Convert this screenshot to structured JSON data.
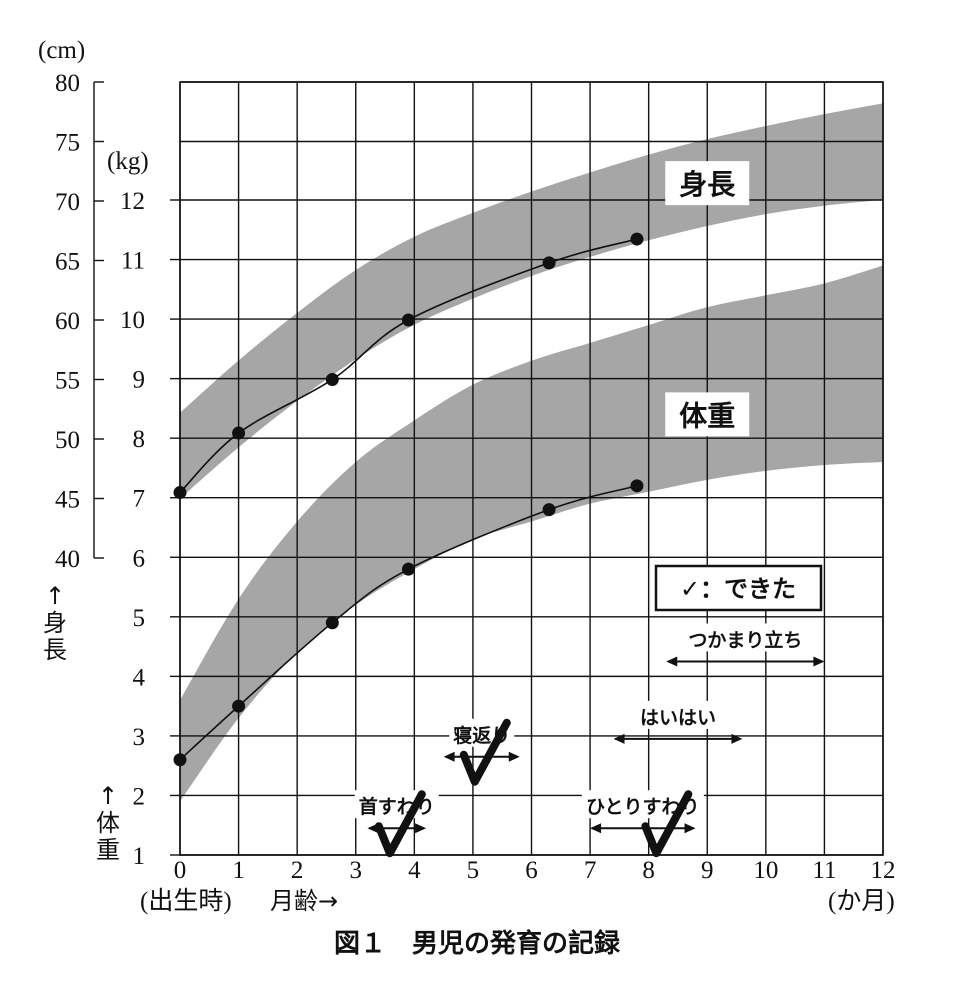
{
  "chart_data": {
    "type": "line",
    "title": "図１　男児の発育の記録",
    "xlabel": "月齢→",
    "x_unit": "(か月)",
    "x_birth_label": "(出生時)",
    "xlim": [
      0,
      12
    ],
    "xticks": [
      0,
      1,
      2,
      3,
      4,
      5,
      6,
      7,
      8,
      9,
      10,
      11,
      12
    ],
    "grid": true,
    "y_height": {
      "axis_label": [
        "↑",
        "身",
        "長"
      ],
      "unit": "(cm)",
      "ylim": [
        40,
        80
      ],
      "ticks": [
        40,
        45,
        50,
        55,
        60,
        65,
        70,
        75,
        80
      ]
    },
    "y_weight": {
      "axis_label": [
        "↑",
        "体",
        "重"
      ],
      "unit": "(kg)",
      "ylim": [
        1,
        12
      ],
      "ticks": [
        1,
        2,
        3,
        4,
        5,
        6,
        7,
        8,
        9,
        10,
        11,
        12
      ]
    },
    "bands": [
      {
        "name": "身長",
        "axis": "height",
        "color": "#a6a6a6",
        "upper": [
          [
            0,
            52.2
          ],
          [
            1,
            56.6
          ],
          [
            2,
            60.6
          ],
          [
            3,
            64.2
          ],
          [
            4,
            67.0
          ],
          [
            5,
            69.0
          ],
          [
            6,
            70.8
          ],
          [
            7,
            72.4
          ],
          [
            8,
            73.9
          ],
          [
            9,
            75.2
          ],
          [
            10,
            76.3
          ],
          [
            11,
            77.3
          ],
          [
            12,
            78.2
          ]
        ],
        "lower": [
          [
            0,
            45.0
          ],
          [
            1,
            49.3
          ],
          [
            2,
            53.2
          ],
          [
            3,
            56.7
          ],
          [
            4,
            59.6
          ],
          [
            5,
            61.8
          ],
          [
            6,
            63.7
          ],
          [
            7,
            65.3
          ],
          [
            8,
            66.7
          ],
          [
            9,
            67.9
          ],
          [
            10,
            68.9
          ],
          [
            11,
            69.6
          ],
          [
            12,
            70.1
          ]
        ]
      },
      {
        "name": "体重",
        "axis": "weight",
        "color": "#a6a6a6",
        "upper": [
          [
            0,
            3.6
          ],
          [
            1,
            5.3
          ],
          [
            2,
            6.6
          ],
          [
            3,
            7.6
          ],
          [
            4,
            8.3
          ],
          [
            5,
            8.9
          ],
          [
            6,
            9.3
          ],
          [
            7,
            9.6
          ],
          [
            8,
            9.9
          ],
          [
            9,
            10.2
          ],
          [
            10,
            10.4
          ],
          [
            11,
            10.6
          ],
          [
            12,
            10.9
          ]
        ],
        "lower": [
          [
            0,
            1.9
          ],
          [
            1,
            3.3
          ],
          [
            2,
            4.4
          ],
          [
            3,
            5.2
          ],
          [
            4,
            5.8
          ],
          [
            5,
            6.3
          ],
          [
            6,
            6.6
          ],
          [
            7,
            6.9
          ],
          [
            8,
            7.1
          ],
          [
            9,
            7.3
          ],
          [
            10,
            7.45
          ],
          [
            11,
            7.55
          ],
          [
            12,
            7.6
          ]
        ]
      }
    ],
    "series": [
      {
        "name": "身長",
        "axis": "height",
        "x": [
          0,
          1,
          2.6,
          3.9,
          6.3,
          7.8
        ],
        "y": [
          45.5,
          50.5,
          55.0,
          60.0,
          64.8,
          66.8
        ]
      },
      {
        "name": "体重",
        "axis": "weight",
        "x": [
          0,
          1,
          2.6,
          3.9,
          6.3,
          7.8
        ],
        "y": [
          2.6,
          3.5,
          4.9,
          5.8,
          6.8,
          7.2
        ]
      }
    ],
    "band_labels": [
      {
        "text": "身長",
        "x": 9.0,
        "y_axis": "height",
        "y": 71.5
      },
      {
        "text": "体重",
        "x": 9.0,
        "y_axis": "weight",
        "y": 8.4
      }
    ],
    "legend": {
      "text": "✓：できた",
      "position": "right"
    },
    "milestones": [
      {
        "label": "首すわり",
        "from": 3.2,
        "to": 4.2,
        "checked": true,
        "check_x": 3.65,
        "y": 1.45
      },
      {
        "label": "寝返り",
        "from": 4.5,
        "to": 5.8,
        "checked": true,
        "check_x": 5.1,
        "y": 2.65
      },
      {
        "label": "ひとりすわり",
        "from": 7.0,
        "to": 8.8,
        "checked": true,
        "check_x": 8.2,
        "y": 1.45
      },
      {
        "label": "はいはい",
        "from": 7.4,
        "to": 9.6,
        "checked": false,
        "y": 2.95
      },
      {
        "label": "つかまり立ち",
        "from": 8.3,
        "to": 11.0,
        "checked": false,
        "y": 4.25
      }
    ]
  }
}
